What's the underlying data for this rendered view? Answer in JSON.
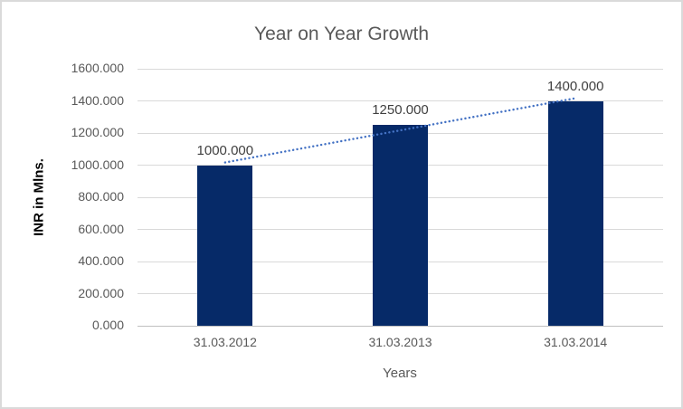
{
  "chart_data": {
    "type": "bar",
    "title": "Year on Year Growth",
    "xlabel": "Years",
    "ylabel": "INR in Mlns.",
    "categories": [
      "31.03.2012",
      "31.03.2013",
      "31.03.2014"
    ],
    "values": [
      1000,
      1250,
      1400
    ],
    "data_labels": [
      "1000.000",
      "1250.000",
      "1400.000"
    ],
    "y_ticks": [
      0,
      200,
      400,
      600,
      800,
      1000,
      1200,
      1400,
      1600
    ],
    "y_tick_labels": [
      "0.000",
      "200.000",
      "400.000",
      "600.000",
      "800.000",
      "1000.000",
      "1200.000",
      "1400.000",
      "1600.000"
    ],
    "ylim": [
      0,
      1600
    ],
    "grid": "horizontal",
    "legend": "none",
    "trendline": {
      "type": "linear",
      "style": "dotted",
      "color": "#4472c4"
    },
    "colors": {
      "bar": "#062a68",
      "trendline": "#4472c4",
      "gridline": "#d9d9d9",
      "axis_line": "#c0c0c0",
      "tick_text": "#595959",
      "title_text": "#595959",
      "data_label_text": "#404040",
      "y_axis_title_text": "#000000",
      "background": "#ffffff",
      "border": "#dadada"
    }
  }
}
